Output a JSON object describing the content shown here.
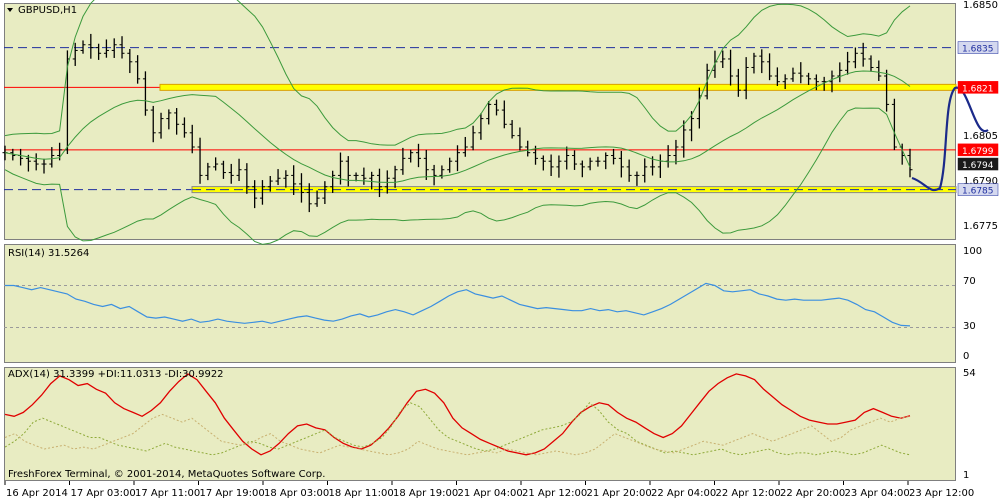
{
  "main": {
    "title": "GBPUSD,H1",
    "price_axis": [
      "1.6850",
      "1.6805",
      "1.6790",
      "1.6775"
    ],
    "price_tags": [
      {
        "price": 1.6835,
        "label": "1.6835",
        "style": "blue"
      },
      {
        "price": 1.6821,
        "label": "1.6821",
        "style": "red"
      },
      {
        "price": 1.6799,
        "label": "1.6799",
        "style": "red"
      },
      {
        "price": 1.6794,
        "label": "1.6794",
        "style": "dark"
      },
      {
        "price": 1.6785,
        "label": "1.6785",
        "style": "blue"
      }
    ]
  },
  "rsi": {
    "label": "RSI(14) 31.5264",
    "axis": [
      "100",
      "70",
      "30",
      "0"
    ]
  },
  "adx": {
    "label": "ADX(14) 31.3399 +DI:11.0313 -DI:30.9922",
    "axis": [
      "54",
      "1"
    ]
  },
  "footer": "FreshForex Terminal, © 2001-2014, MetaQuotes Software Corp.",
  "time_axis": [
    "16 Apr 2014",
    "17 Apr 03:00",
    "17 Apr 11:00",
    "17 Apr 19:00",
    "18 Apr 03:00",
    "18 Apr 11:00",
    "18 Apr 19:00",
    "21 Apr 04:00",
    "21 Apr 12:00",
    "21 Apr 20:00",
    "22 Apr 04:00",
    "22 Apr 12:00",
    "22 Apr 20:00",
    "23 Apr 04:00",
    "23 Apr 12:00"
  ],
  "colors": {
    "background": "#e8ecc2",
    "bars": "#000000",
    "bollinger": "#3c9a3c",
    "resistance": "#ff0000",
    "support_band": "#ffff00",
    "dashed_level": "#1f2f9f",
    "rsi_line": "#3b8fe0",
    "adx_line": "#e00000",
    "plus_di": "#8faa3a",
    "minus_di": "#c8b070",
    "forecast_curve": "#1b2a8a"
  },
  "chart_data": [
    {
      "type": "candlestick",
      "name": "GBPUSD,H1",
      "x_range": [
        "16 Apr 2014",
        "23 Apr 12:00"
      ],
      "ylim": [
        1.6773,
        1.6852
      ],
      "levels": {
        "dashed_blue": [
          1.6835,
          1.6785
        ],
        "red_resistance": [
          1.6821,
          1.6799
        ],
        "yellow_support": 1.6785,
        "yellow_resistance": 1.6821
      },
      "close_path": [
        1.6798,
        1.6797,
        1.6796,
        1.6795,
        1.6794,
        1.6794,
        1.6797,
        1.6799,
        1.6831,
        1.6834,
        1.6836,
        1.6835,
        1.6833,
        1.6834,
        1.6836,
        1.6833,
        1.683,
        1.6824,
        1.6813,
        1.6805,
        1.681,
        1.6812,
        1.6808,
        1.6805,
        1.68,
        1.679,
        1.6793,
        1.6794,
        1.6791,
        1.679,
        1.6792,
        1.6786,
        1.6782,
        1.6786,
        1.6788,
        1.6789,
        1.679,
        1.6787,
        1.6784,
        1.678,
        1.6782,
        1.6786,
        1.679,
        1.6795,
        1.679,
        1.679,
        1.6789,
        1.679,
        1.6786,
        1.6789,
        1.6792,
        1.6796,
        1.6798,
        1.6796,
        1.6792,
        1.679,
        1.6792,
        1.6795,
        1.6798,
        1.68,
        1.6805,
        1.681,
        1.6815,
        1.6813,
        1.6808,
        1.6804,
        1.68,
        1.6798,
        1.6796,
        1.6795,
        1.6793,
        1.6795,
        1.6797,
        1.6794,
        1.6793,
        1.6795,
        1.6795,
        1.6797,
        1.6796,
        1.6793,
        1.679,
        1.679,
        1.6793,
        1.6793,
        1.6795,
        1.6797,
        1.68,
        1.6806,
        1.681,
        1.6818,
        1.6827,
        1.683,
        1.6831,
        1.6825,
        1.682,
        1.6828,
        1.6832,
        1.683,
        1.6825,
        1.6823,
        1.6824,
        1.6826,
        1.6825,
        1.6824,
        1.6823,
        1.6823,
        1.6825,
        1.6827,
        1.683,
        1.6833,
        1.6831,
        1.6828,
        1.6825,
        1.6815,
        1.68,
        1.6797,
        1.6792
      ]
    },
    {
      "type": "line",
      "name": "RSI(14)",
      "ylim": [
        0,
        100
      ],
      "levels": [
        70,
        30
      ],
      "last_value": 31.5264,
      "values": [
        70,
        70,
        68,
        66,
        68,
        66,
        64,
        62,
        57,
        55,
        52,
        50,
        52,
        48,
        50,
        45,
        40,
        39,
        40,
        38,
        36,
        38,
        35,
        36,
        38,
        36,
        35,
        34,
        35,
        36,
        34,
        36,
        38,
        40,
        41,
        39,
        37,
        36,
        38,
        41,
        43,
        40,
        42,
        45,
        47,
        45,
        42,
        46,
        50,
        55,
        60,
        64,
        66,
        62,
        60,
        58,
        60,
        56,
        52,
        50,
        48,
        49,
        48,
        47,
        46,
        46,
        48,
        46,
        47,
        45,
        46,
        44,
        42,
        45,
        48,
        52,
        57,
        62,
        67,
        72,
        70,
        65,
        64,
        65,
        66,
        62,
        60,
        57,
        56,
        57,
        56,
        56,
        56,
        57,
        58,
        56,
        52,
        47,
        45,
        40,
        35,
        32,
        31.5
      ]
    },
    {
      "type": "line",
      "name": "ADX(14)",
      "ylim": [
        0,
        54
      ],
      "last_values": {
        "ADX": 31.3399,
        "+DI": 11.0313,
        "-DI": 30.9922
      },
      "series": [
        {
          "name": "ADX",
          "values": [
            32,
            31,
            33,
            37,
            42,
            48,
            52,
            50,
            47,
            48,
            45,
            43,
            38,
            35,
            33,
            31,
            34,
            38,
            44,
            49,
            53,
            50,
            44,
            38,
            30,
            24,
            18,
            14,
            11,
            13,
            17,
            22,
            26,
            27,
            25,
            24,
            20,
            17,
            15,
            14,
            16,
            20,
            25,
            31,
            38,
            44,
            45,
            43,
            38,
            30,
            25,
            22,
            19,
            17,
            15,
            13,
            12,
            11,
            12,
            14,
            18,
            22,
            28,
            33,
            36,
            38,
            37,
            33,
            30,
            28,
            25,
            22,
            20,
            22,
            26,
            32,
            38,
            44,
            48,
            51,
            53,
            52,
            50,
            45,
            41,
            37,
            34,
            31,
            29,
            28,
            27,
            27,
            28,
            29,
            33,
            35,
            33,
            31,
            30,
            31.3
          ]
        },
        {
          "name": "+DI",
          "values": [
            15,
            18,
            22,
            28,
            30,
            28,
            26,
            24,
            22,
            20,
            20,
            18,
            16,
            15,
            14,
            13,
            15,
            17,
            15,
            14,
            13,
            12,
            11,
            12,
            14,
            16,
            18,
            17,
            15,
            14,
            16,
            18,
            20,
            22,
            24,
            20,
            18,
            16,
            15,
            17,
            20,
            26,
            34,
            38,
            36,
            30,
            24,
            20,
            18,
            16,
            14,
            13,
            14,
            16,
            18,
            20,
            22,
            24,
            25,
            26,
            28,
            32,
            38,
            34,
            28,
            24,
            22,
            18,
            16,
            14,
            12,
            13,
            12,
            11,
            12,
            13,
            14,
            12,
            11,
            12,
            13,
            14,
            12,
            11,
            12,
            12,
            11,
            12,
            13,
            12,
            11,
            12,
            14,
            16,
            14,
            12,
            11.0
          ]
        },
        {
          "name": "-DI",
          "values": [
            20,
            22,
            18,
            16,
            14,
            15,
            16,
            14,
            15,
            14,
            16,
            18,
            20,
            22,
            26,
            30,
            32,
            30,
            28,
            30,
            26,
            22,
            18,
            17,
            16,
            17,
            20,
            22,
            18,
            16,
            14,
            13,
            12,
            14,
            16,
            15,
            14,
            13,
            12,
            11,
            12,
            14,
            18,
            16,
            14,
            13,
            12,
            11,
            12,
            13,
            12,
            14,
            13,
            12,
            11,
            12,
            13,
            12,
            11,
            12,
            14,
            18,
            22,
            20,
            18,
            16,
            14,
            13,
            12,
            14,
            16,
            18,
            17,
            16,
            18,
            20,
            22,
            20,
            18,
            20,
            22,
            24,
            26,
            22,
            18,
            20,
            24,
            26,
            28,
            30,
            28,
            30,
            31.0
          ]
        }
      ]
    }
  ]
}
